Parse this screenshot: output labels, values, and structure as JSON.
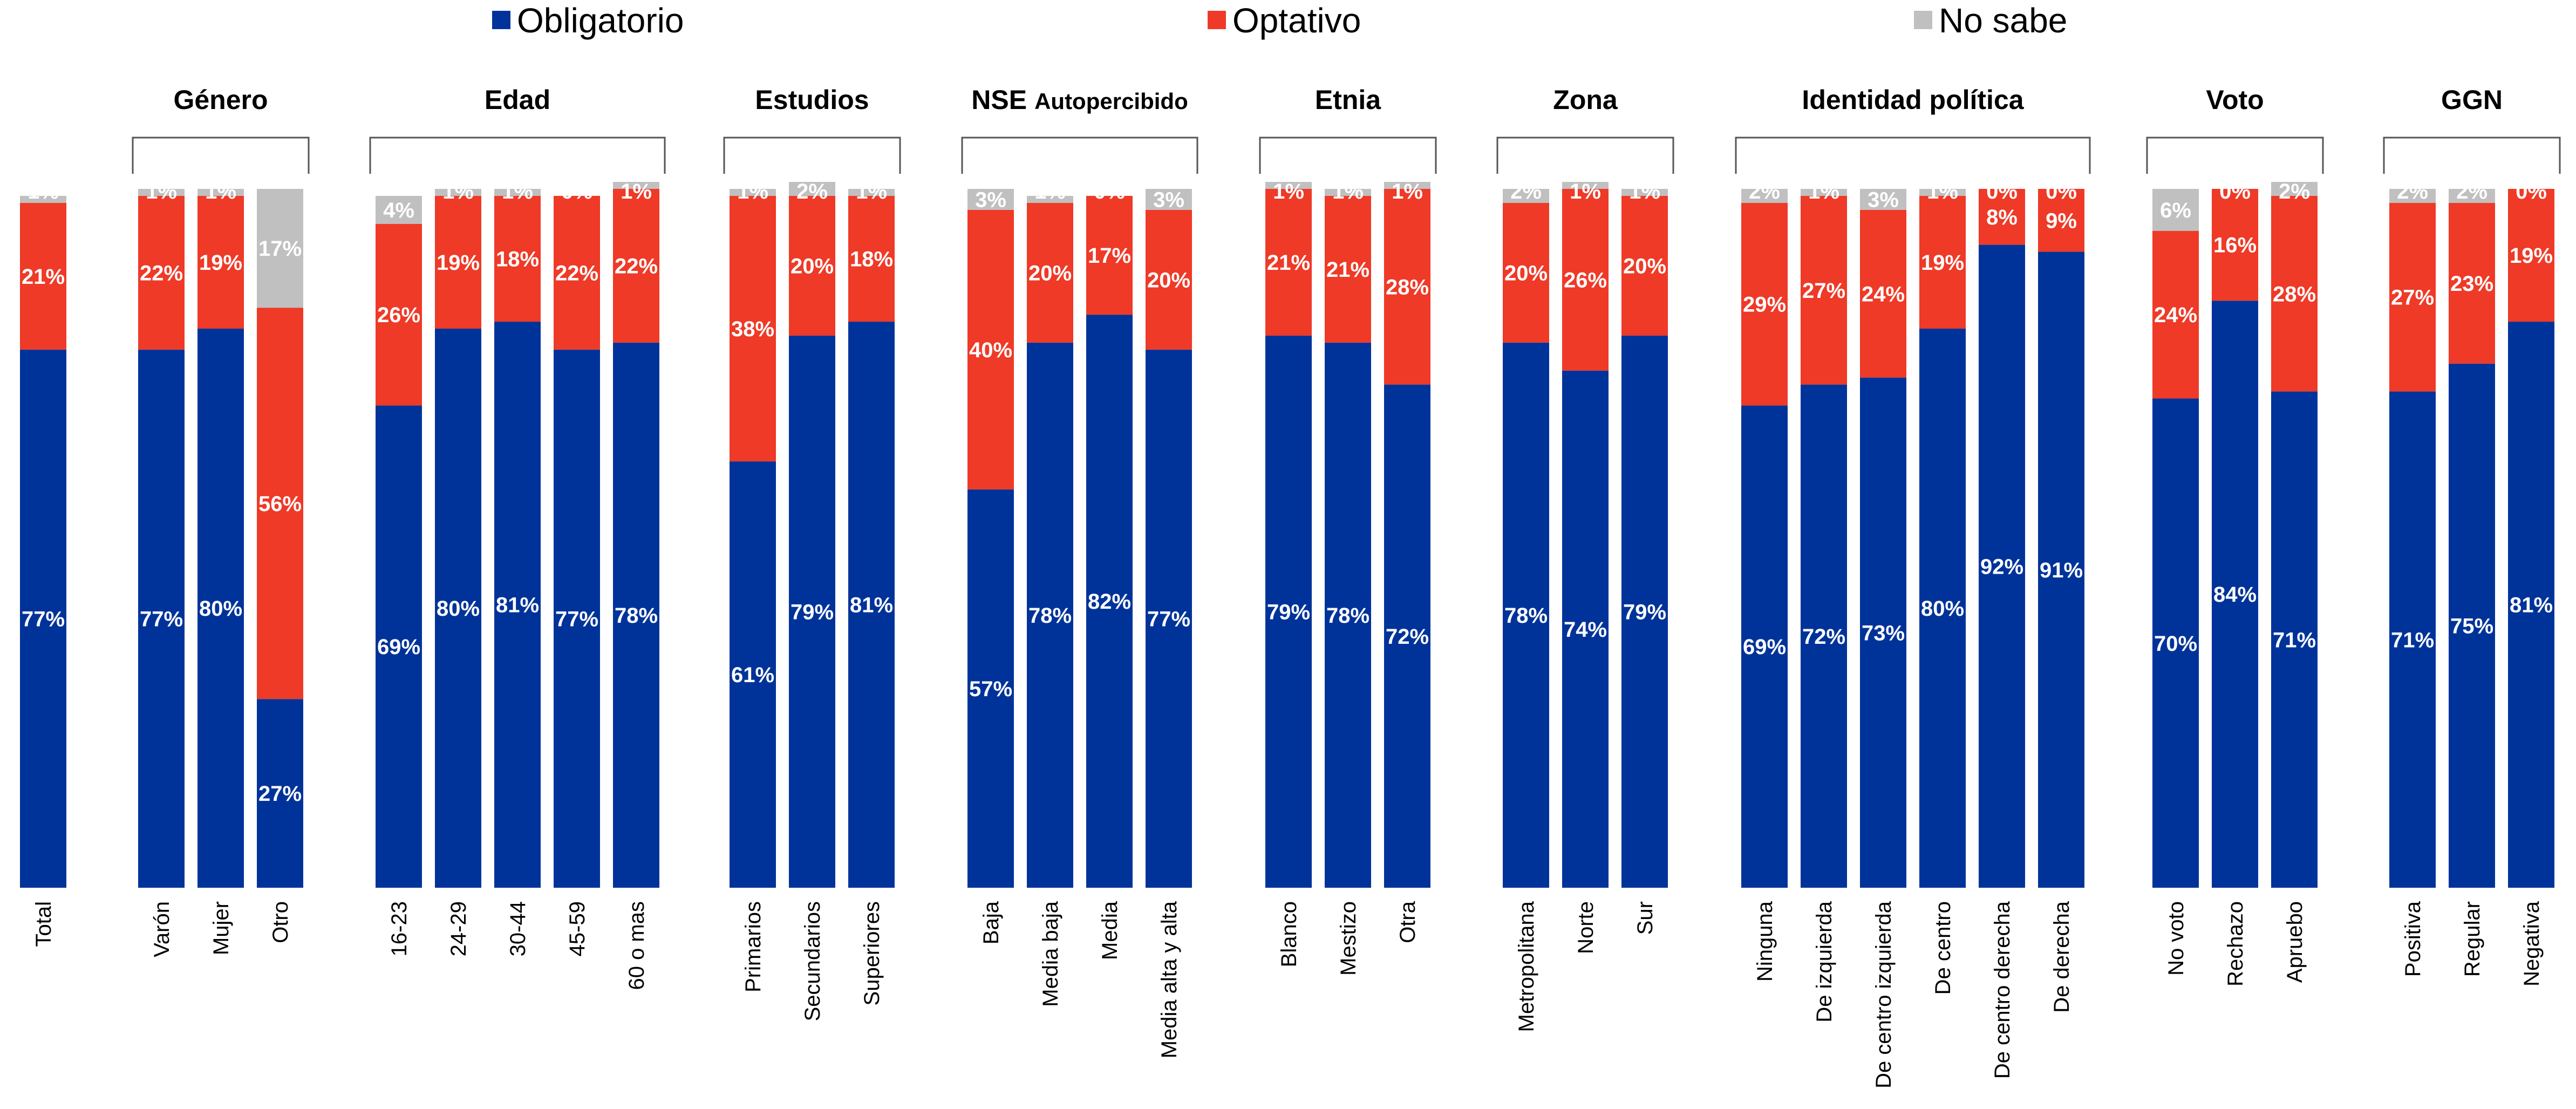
{
  "colors": {
    "obligatorio": "#003399",
    "optativo": "#EE3A27",
    "nosabe": "#C0C0C0"
  },
  "chart_data": {
    "type": "bar",
    "stacked": true,
    "ylim": [
      0,
      100
    ],
    "grid": false,
    "legend_position": "top",
    "series": [
      {
        "name": "Obligatorio",
        "key": "obligatorio"
      },
      {
        "name": "Optativo",
        "key": "optativo"
      },
      {
        "name": "No sabe",
        "key": "nosabe"
      }
    ],
    "groups": [
      {
        "title": "",
        "bars": [
          {
            "label": "Total",
            "obligatorio": 77,
            "optativo": 21,
            "nosabe": 1
          }
        ]
      },
      {
        "title": "Género",
        "bars": [
          {
            "label": "Varón",
            "obligatorio": 77,
            "optativo": 22,
            "nosabe": 1
          },
          {
            "label": "Mujer",
            "obligatorio": 80,
            "optativo": 19,
            "nosabe": 1
          },
          {
            "label": "Otro",
            "obligatorio": 27,
            "optativo": 56,
            "nosabe": 17
          }
        ]
      },
      {
        "title": "Edad",
        "bars": [
          {
            "label": "16-23",
            "obligatorio": 69,
            "optativo": 26,
            "nosabe": 4
          },
          {
            "label": "24-29",
            "obligatorio": 80,
            "optativo": 19,
            "nosabe": 1
          },
          {
            "label": "30-44",
            "obligatorio": 81,
            "optativo": 18,
            "nosabe": 1
          },
          {
            "label": "45-59",
            "obligatorio": 77,
            "optativo": 22,
            "nosabe": 0
          },
          {
            "label": "60 o mas",
            "obligatorio": 78,
            "optativo": 22,
            "nosabe": 1
          }
        ]
      },
      {
        "title": "Estudios",
        "bars": [
          {
            "label": "Primarios",
            "obligatorio": 61,
            "optativo": 38,
            "nosabe": 1
          },
          {
            "label": "Secundarios",
            "obligatorio": 79,
            "optativo": 20,
            "nosabe": 2
          },
          {
            "label": "Superiores",
            "obligatorio": 81,
            "optativo": 18,
            "nosabe": 1
          }
        ]
      },
      {
        "title": "NSE",
        "subtitle": "Autopercibido",
        "bars": [
          {
            "label": "Baja",
            "obligatorio": 57,
            "optativo": 40,
            "nosabe": 3
          },
          {
            "label": "Media baja",
            "obligatorio": 78,
            "optativo": 20,
            "nosabe": 1
          },
          {
            "label": "Media",
            "obligatorio": 82,
            "optativo": 17,
            "nosabe": 0
          },
          {
            "label": "Media alta y alta",
            "obligatorio": 77,
            "optativo": 20,
            "nosabe": 3
          }
        ]
      },
      {
        "title": "Etnia",
        "bars": [
          {
            "label": "Blanco",
            "obligatorio": 79,
            "optativo": 21,
            "nosabe": 1
          },
          {
            "label": "Mestizo",
            "obligatorio": 78,
            "optativo": 21,
            "nosabe": 1
          },
          {
            "label": "Otra",
            "obligatorio": 72,
            "optativo": 28,
            "nosabe": 1
          }
        ]
      },
      {
        "title": "Zona",
        "bars": [
          {
            "label": "Metropolitana",
            "obligatorio": 78,
            "optativo": 20,
            "nosabe": 2
          },
          {
            "label": "Norte",
            "obligatorio": 74,
            "optativo": 26,
            "nosabe": 1
          },
          {
            "label": "Sur",
            "obligatorio": 79,
            "optativo": 20,
            "nosabe": 1
          }
        ]
      },
      {
        "title": "Identidad política",
        "bars": [
          {
            "label": "Ninguna",
            "obligatorio": 69,
            "optativo": 29,
            "nosabe": 2
          },
          {
            "label": "De izquierda",
            "obligatorio": 72,
            "optativo": 27,
            "nosabe": 1
          },
          {
            "label": "De centro izquierda",
            "obligatorio": 73,
            "optativo": 24,
            "nosabe": 3
          },
          {
            "label": "De centro",
            "obligatorio": 80,
            "optativo": 19,
            "nosabe": 1
          },
          {
            "label": "De centro derecha",
            "obligatorio": 92,
            "optativo": 8,
            "nosabe": 0
          },
          {
            "label": "De derecha",
            "obligatorio": 91,
            "optativo": 9,
            "nosabe": 0
          }
        ]
      },
      {
        "title": "Voto",
        "bars": [
          {
            "label": "No voto",
            "obligatorio": 70,
            "optativo": 24,
            "nosabe": 6
          },
          {
            "label": "Rechazo",
            "obligatorio": 84,
            "optativo": 16,
            "nosabe": 0
          },
          {
            "label": "Apruebo",
            "obligatorio": 71,
            "optativo": 28,
            "nosabe": 2
          }
        ]
      },
      {
        "title": "GGN",
        "bars": [
          {
            "label": "Positiva",
            "obligatorio": 71,
            "optativo": 27,
            "nosabe": 2
          },
          {
            "label": "Regular",
            "obligatorio": 75,
            "optativo": 23,
            "nosabe": 2
          },
          {
            "label": "Negativa",
            "obligatorio": 81,
            "optativo": 19,
            "nosabe": 0
          }
        ]
      }
    ]
  }
}
